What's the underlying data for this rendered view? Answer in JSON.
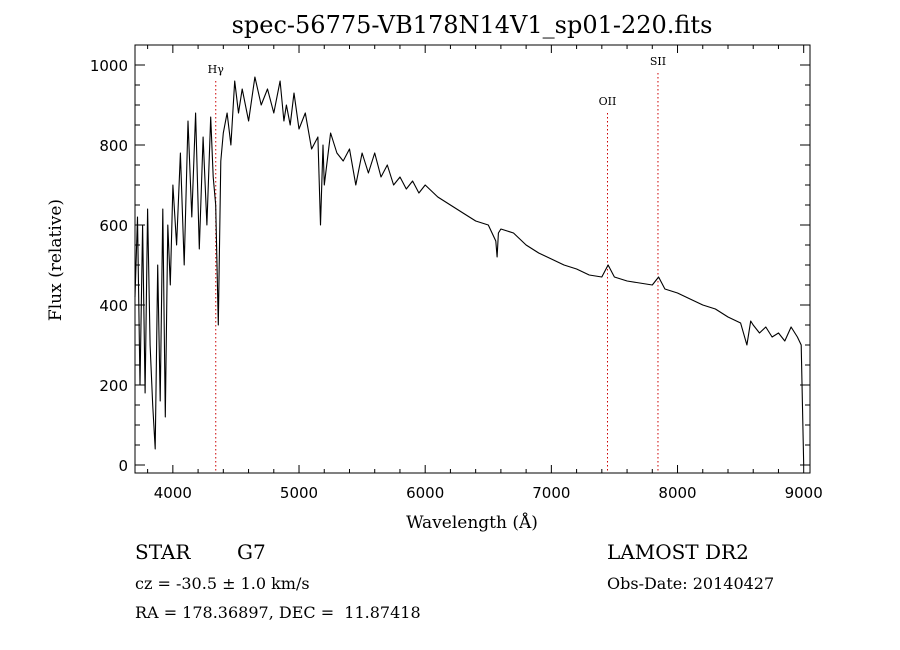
{
  "chart_data": {
    "type": "line",
    "title": "spec-56775-VB178N14V1_sp01-220.fits",
    "xlabel": "Wavelength (Å)",
    "ylabel": "Flux (relative)",
    "xlim": [
      3700,
      9050
    ],
    "ylim": [
      -20,
      1050
    ],
    "x_ticks": [
      4000,
      5000,
      6000,
      7000,
      8000,
      9000
    ],
    "x_tick_labels": [
      "4000",
      "5000",
      "6000",
      "7000",
      "8000",
      "9000"
    ],
    "y_ticks": [
      0,
      200,
      400,
      600,
      800,
      1000
    ],
    "y_tick_labels": [
      "0",
      "200",
      "400",
      "600",
      "800",
      "1000"
    ],
    "grid": false,
    "line_color": "#000000",
    "marker_color": "#cc0000",
    "series": [
      {
        "x": [
          3700,
          3720,
          3740,
          3760,
          3780,
          3800,
          3820,
          3840,
          3860,
          3880,
          3900,
          3920,
          3940,
          3960,
          3980,
          4000,
          4030,
          4060,
          4090,
          4120,
          4150,
          4180,
          4210,
          4240,
          4270,
          4300,
          4320,
          4340,
          4360,
          4380,
          4400,
          4430,
          4460,
          4490,
          4520,
          4550,
          4600,
          4650,
          4700,
          4750,
          4800,
          4850,
          4880,
          4900,
          4930,
          4960,
          5000,
          5050,
          5100,
          5150,
          5170,
          5190,
          5200,
          5250,
          5300,
          5350,
          5400,
          5450,
          5500,
          5550,
          5600,
          5650,
          5700,
          5750,
          5800,
          5850,
          5900,
          5950,
          6000,
          6100,
          6200,
          6300,
          6400,
          6500,
          6560,
          6570,
          6580,
          6600,
          6700,
          6800,
          6900,
          7000,
          7100,
          7200,
          7300,
          7400,
          7450,
          7500,
          7600,
          7700,
          7800,
          7850,
          7900,
          8000,
          8100,
          8200,
          8300,
          8400,
          8500,
          8550,
          8580,
          8600,
          8650,
          8700,
          8750,
          8800,
          8850,
          8900,
          8950,
          8980,
          9000
        ],
        "y": [
          420,
          620,
          200,
          600,
          180,
          640,
          300,
          150,
          40,
          500,
          160,
          640,
          120,
          600,
          450,
          700,
          550,
          780,
          500,
          860,
          620,
          880,
          540,
          820,
          600,
          870,
          720,
          650,
          350,
          760,
          830,
          880,
          800,
          960,
          880,
          940,
          860,
          970,
          900,
          940,
          880,
          960,
          860,
          900,
          850,
          930,
          840,
          880,
          790,
          820,
          600,
          800,
          700,
          830,
          780,
          760,
          790,
          700,
          780,
          730,
          780,
          720,
          750,
          700,
          720,
          690,
          710,
          680,
          700,
          670,
          650,
          630,
          610,
          600,
          560,
          520,
          580,
          590,
          580,
          550,
          530,
          515,
          500,
          490,
          475,
          470,
          500,
          470,
          460,
          455,
          450,
          470,
          440,
          430,
          415,
          400,
          390,
          370,
          355,
          300,
          360,
          350,
          330,
          345,
          320,
          330,
          310,
          345,
          320,
          300,
          0
        ]
      }
    ],
    "annotations": [
      {
        "label": "Hγ",
        "x": 4340,
        "label_y": 980
      },
      {
        "label": "OII",
        "x": 7445,
        "label_y": 900
      },
      {
        "label": "SII",
        "x": 7845,
        "label_y": 1000
      }
    ]
  },
  "info": {
    "object_type": "STAR",
    "subclass": "G7",
    "survey": "LAMOST DR2",
    "cz": "cz = -30.5 ± 1.0 km/s",
    "obs_date": "Obs-Date: 20140427",
    "coords": "RA = 178.36897, DEC =  11.87418"
  }
}
